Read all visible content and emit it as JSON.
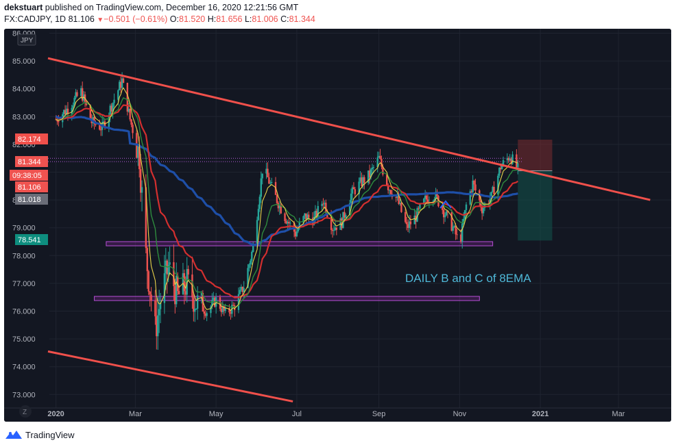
{
  "header": {
    "author": "dekstuart",
    "published": "published on TradingView.com, December 16, 2020 12:21:56 GMT",
    "symbol": "FX:CADJPY, 1D",
    "last": "81.106",
    "change": "−0.501 (−0.61%)",
    "o_label": "O:",
    "o": "81.520",
    "h_label": "H:",
    "h": "81.656",
    "l_label": "L:",
    "l": "81.006",
    "c_label": "C:",
    "c": "81.344"
  },
  "footer": {
    "brand": "TradingView"
  },
  "colors": {
    "background": "#131722",
    "up_candle": "#26a69a",
    "down_candle": "#ef5350",
    "trendline": "#f0504b",
    "ema_fast": "#e8d34a",
    "ema_mid": "#2e8b3e",
    "ema_slow": "#d32f2f",
    "ma_long": "#1e4fa8",
    "zone_border": "#b84fd8"
  },
  "chart_data": {
    "type": "candlestick",
    "currency_label": "JPY",
    "annotation": "DAILY B and C of 8EMA",
    "ylim": [
      72.7,
      86.1
    ],
    "y_ticks": [
      "86.000",
      "85.000",
      "84.000",
      "83.000",
      "82.000",
      "81.000",
      "80.000",
      "79.000",
      "78.000",
      "77.000",
      "76.000",
      "75.000",
      "74.000",
      "73.000"
    ],
    "x_ticks": [
      "2020",
      "Mar",
      "May",
      "Jul",
      "Sep",
      "Nov",
      "2021",
      "Mar"
    ],
    "price_tags": [
      {
        "text": "82.174",
        "value": 82.174,
        "color": "#f0504b"
      },
      {
        "text": "81.344",
        "value": 81.344,
        "color": "#ef5350"
      },
      {
        "text": "09:38:05",
        "value": 80.85,
        "color": "#ef5350"
      },
      {
        "text": "81.106",
        "value": 81.106,
        "color": "#ef5350"
      },
      {
        "text": "81.018",
        "value": 81.018,
        "color": "#6a6d78"
      },
      {
        "text": "78.541",
        "value": 78.541,
        "color": "#0e8e7f"
      }
    ],
    "trendlines": [
      {
        "name": "upper",
        "points": [
          [
            "2019-12-26",
            85.1
          ],
          [
            "2021-03-25",
            80.0
          ]
        ]
      },
      {
        "name": "lower",
        "points": [
          [
            "2019-12-26",
            74.55
          ],
          [
            "2020-06-28",
            72.75
          ]
        ]
      }
    ],
    "zones": [
      {
        "from": "2020-02-08",
        "to": "2020-11-26",
        "low": 78.35,
        "high": 78.5
      },
      {
        "from": "2020-01-30",
        "to": "2020-11-16",
        "low": 76.38,
        "high": 76.53
      }
    ],
    "dotted_levels": [
      {
        "value": 81.5,
        "from": "2019-12-26",
        "to": "2020-12-18"
      },
      {
        "value": 81.38,
        "from": "2019-12-26",
        "to": "2020-12-18"
      }
    ],
    "position": {
      "from": "2020-12-15",
      "to": "2021-01-10",
      "entry": 81.05,
      "stop": 82.17,
      "target": 78.54
    },
    "series": [
      {
        "name": "close",
        "x": [
          "2020-01-01",
          "2020-01-10",
          "2020-01-20",
          "2020-01-28",
          "2020-02-05",
          "2020-02-12",
          "2020-02-20",
          "2020-02-26",
          "2020-03-04",
          "2020-03-09",
          "2020-03-16",
          "2020-03-20",
          "2020-03-26",
          "2020-04-02",
          "2020-04-09",
          "2020-04-16",
          "2020-04-24",
          "2020-05-01",
          "2020-05-08",
          "2020-05-15",
          "2020-05-22",
          "2020-05-29",
          "2020-06-05",
          "2020-06-08",
          "2020-06-15",
          "2020-06-22",
          "2020-06-30",
          "2020-07-07",
          "2020-07-14",
          "2020-07-21",
          "2020-07-28",
          "2020-08-04",
          "2020-08-11",
          "2020-08-18",
          "2020-08-25",
          "2020-09-01",
          "2020-09-08",
          "2020-09-15",
          "2020-09-22",
          "2020-09-29",
          "2020-10-06",
          "2020-10-13",
          "2020-10-20",
          "2020-10-27",
          "2020-11-01",
          "2020-11-06",
          "2020-11-11",
          "2020-11-18",
          "2020-11-25",
          "2020-12-02",
          "2020-12-09",
          "2020-12-15"
        ],
        "values": [
          82.9,
          83.3,
          83.9,
          82.8,
          82.6,
          83.4,
          84.3,
          82.9,
          81.6,
          78.0,
          75.3,
          76.4,
          77.6,
          76.5,
          77.0,
          76.3,
          76.0,
          76.4,
          75.9,
          76.2,
          76.9,
          78.3,
          81.1,
          80.9,
          80.1,
          79.4,
          78.8,
          79.4,
          79.3,
          80.0,
          79.0,
          79.2,
          80.2,
          80.6,
          80.9,
          81.5,
          80.5,
          80.0,
          79.0,
          79.4,
          80.0,
          80.2,
          79.6,
          79.0,
          78.4,
          79.8,
          80.6,
          79.7,
          80.1,
          81.2,
          81.6,
          81.1
        ]
      }
    ],
    "ma_lines": [
      "EMA 8",
      "EMA 21",
      "EMA 50",
      "MA 200"
    ]
  }
}
